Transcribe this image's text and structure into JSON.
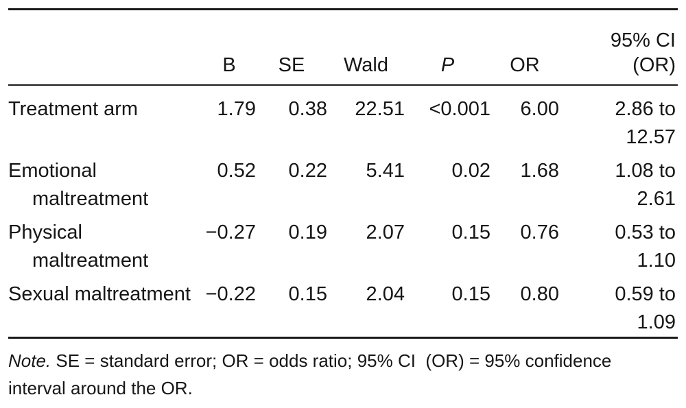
{
  "table": {
    "header": {
      "b": "B",
      "se": "SE",
      "wald": "Wald",
      "p": "P",
      "or": "OR",
      "ci_line1": "95% CI",
      "ci_line2": "(OR)"
    },
    "rows": [
      {
        "label": "Treatment arm",
        "b": "1.79",
        "se": "0.38",
        "wald": "22.51",
        "p": "<0.001",
        "or": "6.00",
        "ci": "2.86 to 12.57"
      },
      {
        "label": "Emotional maltreatment",
        "b": "0.52",
        "se": "0.22",
        "wald": "5.41",
        "p": "0.02",
        "or": "1.68",
        "ci": "1.08 to 2.61"
      },
      {
        "label": "Physical maltreatment",
        "b": "−0.27",
        "se": "0.19",
        "wald": "2.07",
        "p": "0.15",
        "or": "0.76",
        "ci": "0.53 to 1.10"
      },
      {
        "label": "Sexual maltreatment",
        "b": "−0.22",
        "se": "0.15",
        "wald": "2.04",
        "p": "0.15",
        "or": "0.80",
        "ci": "0.59 to 1.09"
      }
    ],
    "note": {
      "label": "Note.",
      "text": "SE = standard error; OR = odds ratio; 95% CI  (OR) = 95% confidence interval around the OR."
    }
  },
  "colors": {
    "text": "#161616",
    "rule": "#1a1a1a",
    "background": "#ffffff"
  },
  "chart_data": {
    "type": "table",
    "columns": [
      "",
      "B",
      "SE",
      "Wald",
      "P",
      "OR",
      "95% CI (OR)"
    ],
    "rows": [
      [
        "Treatment arm",
        "1.79",
        "0.38",
        "22.51",
        "<0.001",
        "6.00",
        "2.86 to 12.57"
      ],
      [
        "Emotional maltreatment",
        "0.52",
        "0.22",
        "5.41",
        "0.02",
        "1.68",
        "1.08 to 2.61"
      ],
      [
        "Physical maltreatment",
        "−0.27",
        "0.19",
        "2.07",
        "0.15",
        "0.76",
        "0.53 to 1.10"
      ],
      [
        "Sexual maltreatment",
        "−0.22",
        "0.15",
        "2.04",
        "0.15",
        "0.80",
        "0.59 to 1.09"
      ]
    ],
    "note": "Note. SE = standard error; OR = odds ratio; 95% CI (OR) = 95% confidence interval around the OR."
  }
}
